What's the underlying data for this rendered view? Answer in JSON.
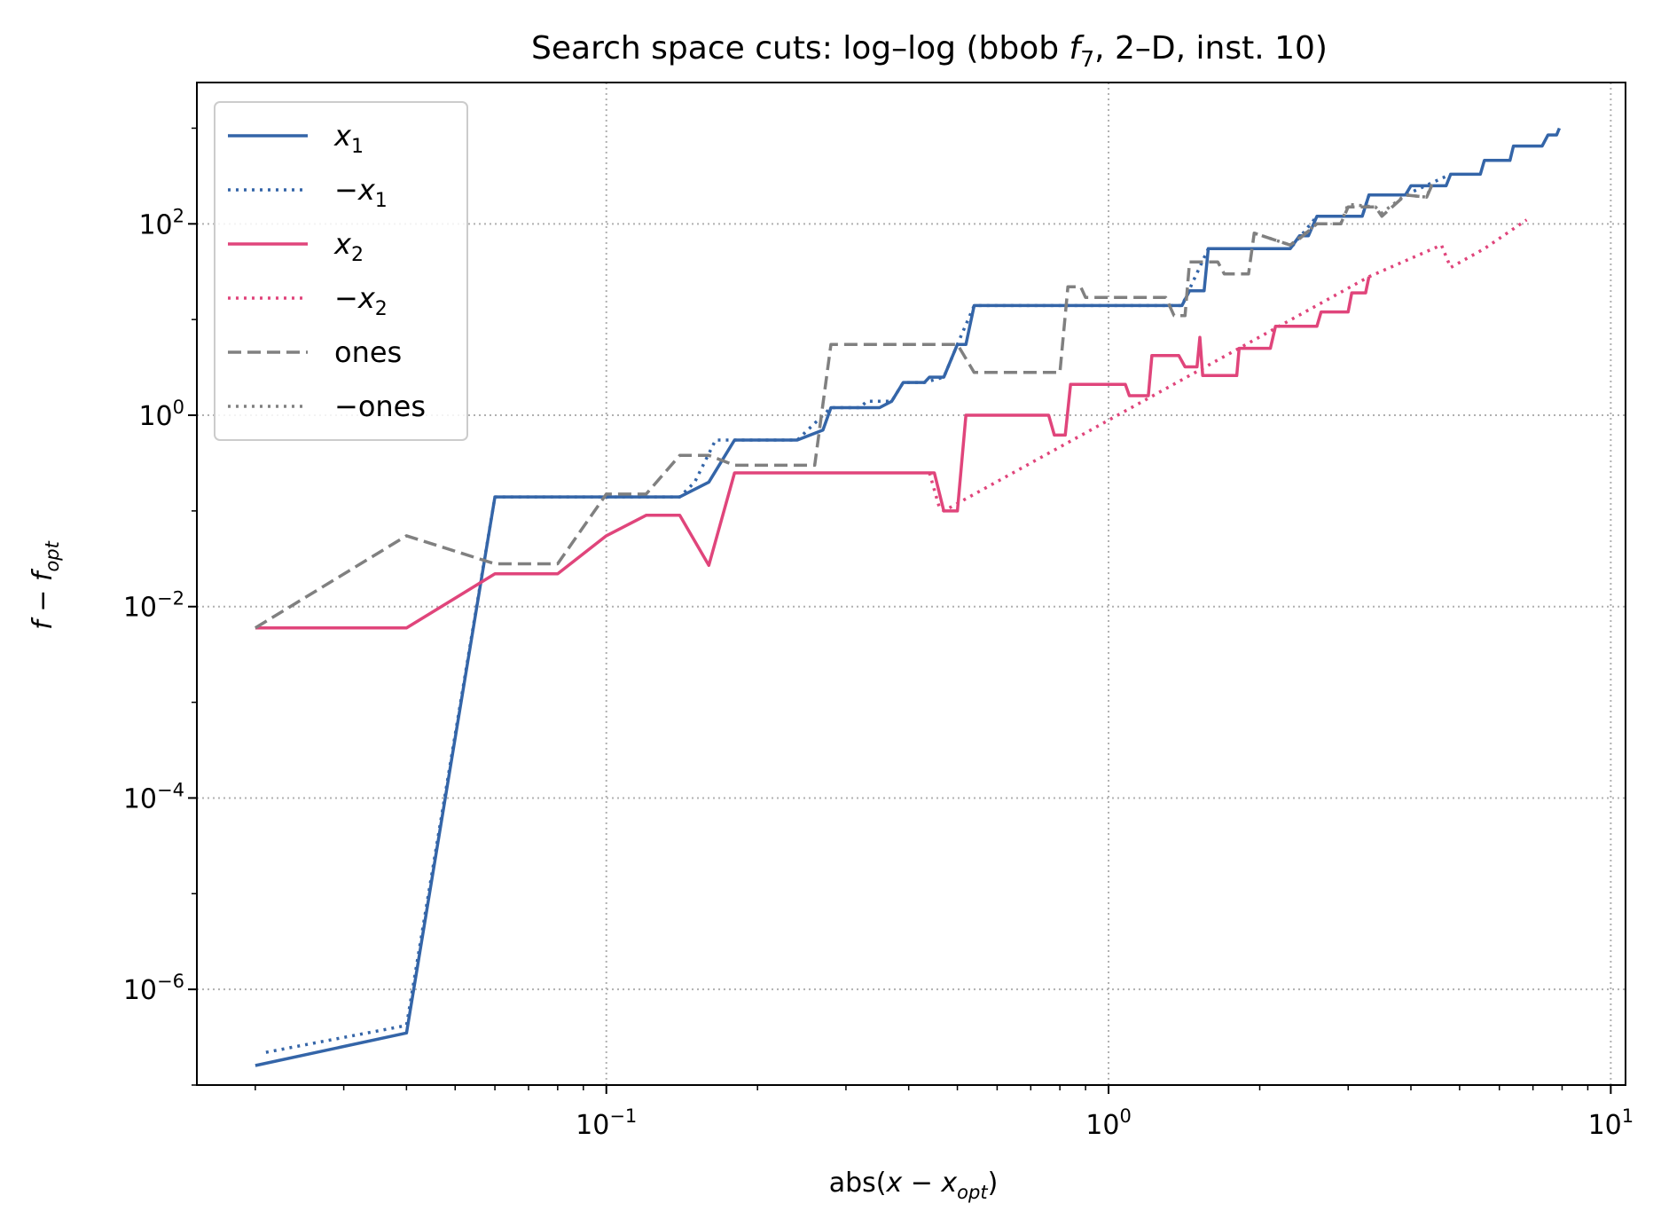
{
  "chart_data": {
    "type": "line",
    "title": "Search space cuts: log–log (bbob f7, 2–D, inst. 10)",
    "title_parts": {
      "prefix": "Search space cuts: log–log (bbob ",
      "fn": "f",
      "fn_sub": "7",
      "suffix": ", 2–D, inst. 10)"
    },
    "xlabel": "abs(x − x_opt)",
    "xlabel_parts": {
      "prefix": "abs(",
      "var": "x − x",
      "sub": "opt",
      "suffix": ")"
    },
    "ylabel": "f − f_opt",
    "ylabel_parts": {
      "main": "f − f",
      "sub": "opt"
    },
    "xscale": "log",
    "yscale": "log",
    "xlim": [
      0.0153,
      10.7
    ],
    "ylim": [
      1e-07,
      3000
    ],
    "grid": true,
    "legend_position": "top-left",
    "x_ticks": [
      {
        "base": "10",
        "exp": "−1",
        "value": 0.1
      },
      {
        "base": "10",
        "exp": "0",
        "value": 1
      },
      {
        "base": "10",
        "exp": "1",
        "value": 10
      }
    ],
    "y_ticks": [
      {
        "base": "10",
        "exp": "2",
        "value": 100
      },
      {
        "base": "10",
        "exp": "0",
        "value": 1
      },
      {
        "base": "10",
        "exp": "−2",
        "value": 0.01
      },
      {
        "base": "10",
        "exp": "−4",
        "value": 0.0001
      },
      {
        "base": "10",
        "exp": "−6",
        "value": 1e-06
      }
    ],
    "series": [
      {
        "name": "x1",
        "label_prefix": "",
        "label_var": "x",
        "label_sub": "1",
        "color": "#3465a8",
        "style": "solid",
        "points": [
          [
            0.02,
            1.6e-07
          ],
          [
            0.04,
            3.5e-07
          ],
          [
            0.06,
            0.14
          ],
          [
            0.14,
            0.14
          ],
          [
            0.16,
            0.2
          ],
          [
            0.18,
            0.55
          ],
          [
            0.24,
            0.55
          ],
          [
            0.27,
            0.7
          ],
          [
            0.28,
            1.2
          ],
          [
            0.35,
            1.2
          ],
          [
            0.37,
            1.4
          ],
          [
            0.39,
            2.2
          ],
          [
            0.43,
            2.2
          ],
          [
            0.44,
            2.5
          ],
          [
            0.47,
            2.5
          ],
          [
            0.5,
            5.5
          ],
          [
            0.52,
            5.5
          ],
          [
            0.54,
            14
          ],
          [
            1.4,
            14
          ],
          [
            1.45,
            20
          ],
          [
            1.55,
            20
          ],
          [
            1.58,
            55
          ],
          [
            2.3,
            55
          ],
          [
            2.4,
            75
          ],
          [
            2.5,
            75
          ],
          [
            2.6,
            120
          ],
          [
            3.2,
            120
          ],
          [
            3.3,
            200
          ],
          [
            3.9,
            200
          ],
          [
            4.0,
            250
          ],
          [
            4.7,
            250
          ],
          [
            4.8,
            330
          ],
          [
            5.5,
            330
          ],
          [
            5.6,
            460
          ],
          [
            6.3,
            460
          ],
          [
            6.4,
            650
          ],
          [
            7.3,
            650
          ],
          [
            7.5,
            850
          ],
          [
            7.8,
            850
          ],
          [
            7.9,
            1000
          ]
        ]
      },
      {
        "name": "−x1",
        "label_prefix": "−",
        "label_var": "x",
        "label_sub": "1",
        "color": "#3465a8",
        "style": "dotted",
        "points": [
          [
            0.021,
            2.2e-07
          ],
          [
            0.04,
            4.2e-07
          ],
          [
            0.06,
            0.14
          ],
          [
            0.14,
            0.14
          ],
          [
            0.15,
            0.2
          ],
          [
            0.165,
            0.55
          ],
          [
            0.24,
            0.55
          ],
          [
            0.28,
            1.2
          ],
          [
            0.32,
            1.2
          ],
          [
            0.33,
            1.4
          ],
          [
            0.37,
            1.4
          ],
          [
            0.39,
            2.2
          ],
          [
            0.43,
            2.2
          ],
          [
            0.47,
            2.5
          ],
          [
            0.5,
            5.5
          ],
          [
            0.54,
            14
          ],
          [
            1.4,
            14
          ],
          [
            1.58,
            55
          ],
          [
            2.3,
            55
          ],
          [
            2.6,
            120
          ],
          [
            3.2,
            120
          ],
          [
            3.3,
            200
          ],
          [
            3.9,
            200
          ],
          [
            4.8,
            330
          ]
        ]
      },
      {
        "name": "x2",
        "label_prefix": "",
        "label_var": "x",
        "label_sub": "2",
        "color": "#e0457b",
        "style": "solid",
        "points": [
          [
            0.02,
            0.006
          ],
          [
            0.04,
            0.006
          ],
          [
            0.06,
            0.022
          ],
          [
            0.08,
            0.022
          ],
          [
            0.1,
            0.055
          ],
          [
            0.12,
            0.09
          ],
          [
            0.14,
            0.09
          ],
          [
            0.16,
            0.027
          ],
          [
            0.18,
            0.25
          ],
          [
            0.45,
            0.25
          ],
          [
            0.47,
            0.1
          ],
          [
            0.5,
            0.1
          ],
          [
            0.52,
            1.0
          ],
          [
            0.76,
            1.0
          ],
          [
            0.78,
            0.62
          ],
          [
            0.82,
            0.62
          ],
          [
            0.84,
            2.1
          ],
          [
            1.08,
            2.1
          ],
          [
            1.1,
            1.6
          ],
          [
            1.2,
            1.6
          ],
          [
            1.22,
            4.2
          ],
          [
            1.38,
            4.2
          ],
          [
            1.42,
            3.2
          ],
          [
            1.5,
            3.2
          ],
          [
            1.52,
            6.5
          ],
          [
            1.54,
            2.6
          ],
          [
            1.8,
            2.6
          ],
          [
            1.82,
            5.0
          ],
          [
            2.1,
            5.0
          ],
          [
            2.15,
            8.5
          ],
          [
            2.6,
            8.5
          ],
          [
            2.65,
            12
          ],
          [
            3.0,
            12
          ],
          [
            3.05,
            19
          ],
          [
            3.25,
            19
          ],
          [
            3.3,
            28
          ]
        ]
      },
      {
        "name": "−x2",
        "label_prefix": "−",
        "label_var": "x",
        "label_sub": "2",
        "color": "#e0457b",
        "style": "dotted",
        "points": [
          [
            0.44,
            0.25
          ],
          [
            0.46,
            0.11
          ],
          [
            0.47,
            0.1
          ],
          [
            3.3,
            28
          ],
          [
            4.6,
            60
          ],
          [
            4.8,
            35
          ],
          [
            5.6,
            55
          ],
          [
            6.8,
            110
          ]
        ]
      },
      {
        "name": "ones",
        "label_prefix": "",
        "label_var": "ones",
        "label_sub": "",
        "color": "#808080",
        "style": "dashed",
        "points": [
          [
            0.02,
            0.006
          ],
          [
            0.04,
            0.055
          ],
          [
            0.06,
            0.028
          ],
          [
            0.08,
            0.028
          ],
          [
            0.1,
            0.15
          ],
          [
            0.12,
            0.15
          ],
          [
            0.14,
            0.38
          ],
          [
            0.16,
            0.38
          ],
          [
            0.18,
            0.3
          ],
          [
            0.26,
            0.3
          ],
          [
            0.28,
            5.5
          ],
          [
            0.5,
            5.5
          ],
          [
            0.54,
            2.8
          ],
          [
            0.8,
            2.8
          ],
          [
            0.83,
            22
          ],
          [
            0.88,
            22
          ],
          [
            0.9,
            17
          ],
          [
            1.3,
            17
          ],
          [
            1.35,
            11
          ],
          [
            1.42,
            11
          ],
          [
            1.45,
            40
          ],
          [
            1.65,
            40
          ],
          [
            1.7,
            30
          ],
          [
            1.9,
            30
          ],
          [
            1.95,
            80
          ],
          [
            2.3,
            60
          ],
          [
            2.4,
            70
          ],
          [
            2.6,
            100
          ],
          [
            2.9,
            100
          ],
          [
            3.0,
            150
          ],
          [
            3.4,
            150
          ],
          [
            3.5,
            120
          ],
          [
            3.9,
            200
          ],
          [
            4.3,
            190
          ],
          [
            4.4,
            250
          ]
        ]
      },
      {
        "name": "−ones",
        "label_prefix": "−",
        "label_var": "ones",
        "label_sub": "",
        "color": "#808080",
        "style": "dotted",
        "points": [
          [
            1.95,
            80
          ],
          [
            2.3,
            60
          ],
          [
            2.6,
            100
          ],
          [
            2.9,
            100
          ],
          [
            3.0,
            160
          ],
          [
            3.4,
            150
          ],
          [
            3.5,
            130
          ],
          [
            3.9,
            200
          ],
          [
            4.3,
            190
          ],
          [
            4.4,
            260
          ]
        ]
      }
    ]
  }
}
